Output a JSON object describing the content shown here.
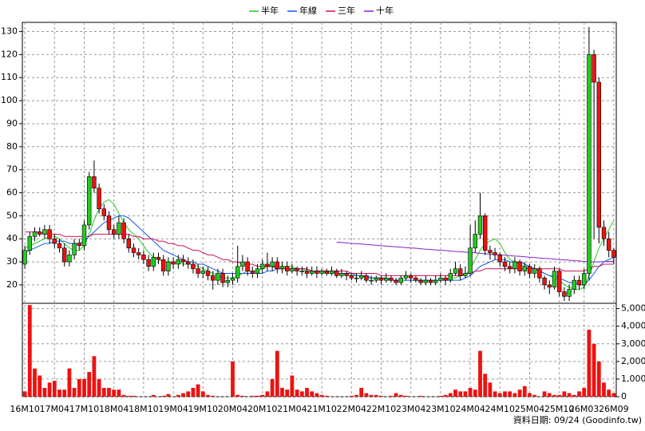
{
  "chart_data": {
    "type": "candlestick",
    "categories": [
      "16M10",
      null,
      null,
      null,
      null,
      null,
      "17M04",
      null,
      null,
      null,
      null,
      null,
      "17M10",
      null,
      null,
      null,
      null,
      null,
      "18M04",
      null,
      null,
      null,
      null,
      null,
      "18M10",
      null,
      null,
      null,
      null,
      null,
      "19M04",
      null,
      null,
      null,
      null,
      null,
      "19M10",
      null,
      null,
      null,
      null,
      null,
      "20M04",
      null,
      null,
      null,
      null,
      null,
      "20M10",
      null,
      null,
      null,
      null,
      null,
      "21M04",
      null,
      null,
      null,
      null,
      null,
      "21M10",
      null,
      null,
      null,
      null,
      null,
      "22M04",
      null,
      null,
      null,
      null,
      null,
      "22M10",
      null,
      null,
      null,
      null,
      null,
      "23M04",
      null,
      null,
      null,
      null,
      null,
      "23M10",
      null,
      null,
      null,
      null,
      null,
      "24M04",
      null,
      null,
      null,
      null,
      null,
      "24M10",
      null,
      null,
      null,
      null,
      null,
      "25M04",
      null,
      null,
      null,
      null,
      null,
      "25M10",
      null,
      null,
      null,
      null,
      "26M03",
      null,
      null,
      null,
      null,
      null,
      "26M09"
    ],
    "open": [
      29,
      35,
      41,
      43,
      42,
      44,
      40,
      38,
      36,
      30,
      33,
      38,
      37,
      46,
      67,
      62,
      53,
      50,
      44,
      42,
      47,
      40,
      36,
      34,
      33,
      31,
      28,
      32,
      31,
      26,
      30,
      29,
      31,
      30,
      29,
      27,
      25,
      26,
      24,
      22,
      25,
      21,
      22,
      23,
      28,
      30,
      26,
      25,
      27,
      29,
      28,
      30,
      27,
      28,
      26,
      27,
      26,
      26,
      25,
      26,
      25,
      26,
      25,
      26,
      24,
      25,
      24,
      23,
      23,
      24,
      22,
      22,
      23,
      22,
      23,
      22,
      21,
      23,
      24,
      23,
      22,
      21,
      22,
      21,
      22,
      23,
      22,
      25,
      27,
      24,
      25,
      36,
      42,
      50,
      35,
      34,
      33,
      30,
      28,
      27,
      30,
      26,
      28,
      25,
      27,
      23,
      20,
      19,
      26,
      17,
      15,
      18,
      22,
      20,
      25,
      120,
      108,
      45,
      40,
      35
    ],
    "high": [
      37,
      43,
      45,
      45,
      46,
      46,
      42,
      40,
      38,
      35,
      40,
      40,
      48,
      69,
      74,
      64,
      55,
      52,
      46,
      50,
      49,
      42,
      38,
      36,
      35,
      33,
      34,
      34,
      33,
      32,
      32,
      33,
      33,
      32,
      31,
      29,
      28,
      28,
      26,
      27,
      27,
      24,
      25,
      37,
      33,
      32,
      28,
      29,
      31,
      34,
      32,
      32,
      30,
      30,
      29,
      28,
      28,
      28,
      28,
      28,
      27,
      27,
      28,
      27,
      27,
      26,
      25,
      25,
      26,
      25,
      24,
      24,
      24,
      25,
      24,
      23,
      24,
      26,
      25,
      24,
      23,
      24,
      23,
      24,
      25,
      24,
      27,
      30,
      29,
      28,
      46,
      48,
      60,
      51,
      37,
      36,
      34,
      32,
      30,
      32,
      31,
      30,
      29,
      29,
      28,
      24,
      22,
      28,
      27,
      19,
      20,
      24,
      24,
      27,
      132,
      122,
      110,
      48,
      43,
      36
    ],
    "low": [
      27,
      33,
      39,
      41,
      40,
      38,
      36,
      34,
      28,
      28,
      31,
      35,
      35,
      44,
      60,
      51,
      48,
      42,
      40,
      40,
      38,
      34,
      32,
      31,
      29,
      26,
      26,
      29,
      24,
      24,
      27,
      27,
      28,
      27,
      25,
      23,
      23,
      22,
      18,
      20,
      19,
      19,
      20,
      21,
      26,
      24,
      23,
      23,
      25,
      26,
      26,
      25,
      25,
      24,
      25,
      24,
      24,
      23,
      24,
      23,
      24,
      24,
      24,
      23,
      23,
      22,
      22,
      21,
      22,
      21,
      20,
      21,
      20,
      21,
      21,
      20,
      20,
      22,
      21,
      21,
      20,
      20,
      20,
      20,
      21,
      20,
      21,
      24,
      22,
      23,
      24,
      34,
      40,
      33,
      31,
      31,
      28,
      26,
      25,
      25,
      24,
      24,
      23,
      23,
      21,
      18,
      16,
      18,
      15,
      13,
      13,
      16,
      18,
      18,
      22,
      40,
      38,
      37,
      32,
      29
    ],
    "close": [
      35,
      41,
      43,
      42,
      44,
      40,
      38,
      36,
      30,
      33,
      38,
      37,
      46,
      67,
      62,
      53,
      50,
      44,
      42,
      47,
      40,
      36,
      34,
      33,
      31,
      28,
      32,
      31,
      26,
      30,
      29,
      31,
      30,
      29,
      27,
      25,
      26,
      24,
      22,
      25,
      21,
      22,
      23,
      28,
      30,
      26,
      25,
      27,
      29,
      28,
      30,
      27,
      28,
      26,
      27,
      26,
      26,
      25,
      26,
      25,
      26,
      25,
      26,
      24,
      25,
      24,
      23,
      23,
      24,
      22,
      22,
      23,
      22,
      23,
      22,
      21,
      23,
      24,
      23,
      22,
      21,
      22,
      21,
      22,
      23,
      22,
      25,
      27,
      24,
      25,
      36,
      42,
      50,
      35,
      34,
      33,
      30,
      28,
      27,
      30,
      26,
      28,
      25,
      27,
      23,
      20,
      19,
      26,
      17,
      15,
      18,
      22,
      20,
      25,
      120,
      108,
      45,
      40,
      35,
      32
    ],
    "up_color": "#22cc22",
    "down_color": "#ee1111",
    "ylim": [
      12,
      134
    ],
    "yticks": [
      20,
      30,
      40,
      50,
      60,
      70,
      80,
      90,
      100,
      110,
      120,
      130
    ],
    "grid": true,
    "series": [
      {
        "name": "半年",
        "color": "#22cc22",
        "values": [
          36,
          37,
          38,
          39,
          40,
          41,
          41,
          40,
          38,
          36,
          35,
          35,
          37,
          42,
          48,
          53,
          56,
          57,
          55,
          51,
          47,
          44,
          42,
          40,
          37,
          34,
          32,
          31,
          30,
          30,
          30,
          30,
          29,
          29,
          29,
          28,
          27,
          26,
          25,
          24,
          23,
          23,
          23,
          24,
          25,
          26,
          26,
          26,
          27,
          28,
          28,
          28,
          28,
          28,
          28,
          27,
          27,
          26,
          26,
          26,
          26,
          25,
          25,
          25,
          25,
          25,
          24,
          24,
          24,
          23,
          23,
          23,
          23,
          22,
          22,
          22,
          22,
          22,
          22,
          22,
          22,
          22,
          22,
          22,
          22,
          22,
          23,
          23,
          24,
          24,
          27,
          31,
          35,
          38,
          39,
          40,
          38,
          34,
          31,
          30,
          29,
          28,
          27,
          27,
          26,
          25,
          24,
          23,
          22,
          20,
          19,
          18,
          18,
          19,
          24,
          30,
          36,
          40,
          44,
          48
        ]
      },
      {
        "name": "年線",
        "color": "#1155ee",
        "values": [
          34,
          35,
          36,
          37,
          38,
          38,
          39,
          39,
          39,
          38,
          38,
          38,
          39,
          41,
          43,
          45,
          47,
          48,
          49,
          50,
          50,
          49,
          47,
          45,
          43,
          41,
          39,
          37,
          35,
          34,
          33,
          32,
          31,
          30,
          30,
          29,
          29,
          28,
          27,
          26,
          25,
          25,
          25,
          25,
          25,
          25,
          25,
          25,
          25,
          26,
          26,
          27,
          27,
          27,
          27,
          27,
          27,
          27,
          26,
          26,
          26,
          26,
          26,
          25,
          25,
          25,
          25,
          24,
          24,
          24,
          23,
          23,
          23,
          23,
          22,
          22,
          22,
          22,
          22,
          22,
          22,
          22,
          22,
          22,
          22,
          22,
          22,
          22,
          22,
          23,
          24,
          26,
          28,
          29,
          30,
          31,
          31,
          31,
          30,
          30,
          30,
          29,
          28,
          27,
          26,
          25,
          24,
          24,
          23,
          22,
          21,
          21,
          20,
          20,
          22,
          25,
          28,
          30,
          31,
          32
        ]
      },
      {
        "name": "三年",
        "color": "#cc1155",
        "values": [
          43,
          43,
          43,
          43,
          42,
          42,
          42,
          42,
          41,
          41,
          41,
          41,
          41,
          41,
          42,
          42,
          42,
          42,
          42,
          42,
          42,
          42,
          41,
          41,
          40,
          40,
          40,
          39,
          39,
          38,
          38,
          37,
          37,
          36,
          35,
          35,
          34,
          33,
          33,
          32,
          31,
          31,
          30,
          30,
          29,
          29,
          29,
          28,
          28,
          28,
          28,
          27,
          27,
          27,
          27,
          27,
          27,
          27,
          26,
          26,
          26,
          26,
          26,
          26,
          26,
          26,
          25,
          25,
          25,
          25,
          25,
          25,
          24,
          24,
          24,
          24,
          24,
          24,
          24,
          24,
          24,
          24,
          24,
          24,
          24,
          24,
          24,
          24,
          24,
          25,
          25,
          26,
          26,
          27,
          27,
          27,
          27,
          27,
          27,
          27,
          27,
          27,
          27,
          27,
          27,
          27,
          27,
          27,
          27,
          26,
          26,
          26,
          26,
          26,
          27,
          28,
          28,
          29,
          29,
          29
        ]
      },
      {
        "name": "十年",
        "color": "#8822cc",
        "values": [
          null,
          null,
          null,
          null,
          null,
          null,
          null,
          null,
          null,
          null,
          null,
          null,
          null,
          null,
          null,
          null,
          null,
          null,
          null,
          null,
          null,
          null,
          null,
          null,
          null,
          null,
          null,
          null,
          null,
          null,
          null,
          null,
          null,
          null,
          null,
          null,
          null,
          null,
          null,
          null,
          null,
          null,
          null,
          null,
          null,
          null,
          null,
          null,
          null,
          null,
          null,
          null,
          null,
          null,
          null,
          null,
          null,
          null,
          null,
          null,
          null,
          null,
          null,
          38.5,
          38.4,
          38.2,
          38,
          37.9,
          37.7,
          37.5,
          37.4,
          37.2,
          37,
          36.9,
          36.7,
          36.5,
          36.4,
          36.2,
          36,
          35.9,
          35.7,
          35.5,
          35.4,
          35.2,
          35,
          34.9,
          34.7,
          34.5,
          34.4,
          34.2,
          34,
          33.9,
          33.7,
          33.5,
          33.4,
          33.2,
          33,
          32.9,
          32.7,
          32.5,
          32.4,
          32.2,
          32,
          31.9,
          31.7,
          31.5,
          31.4,
          31.2,
          31,
          30.9,
          30.7,
          30.5,
          30.4,
          30.2,
          30,
          30,
          30,
          30.1,
          30.2,
          30.3
        ]
      }
    ],
    "volume": {
      "color": "#ee1111",
      "values": [
        300,
        5200,
        1600,
        1200,
        500,
        800,
        900,
        400,
        400,
        1600,
        500,
        1000,
        1000,
        1400,
        2300,
        1000,
        500,
        500,
        400,
        400,
        100,
        50,
        50,
        0,
        0,
        0,
        100,
        0,
        50,
        150,
        0,
        100,
        200,
        300,
        500,
        700,
        300,
        100,
        50,
        0,
        0,
        0,
        2000,
        100,
        50,
        0,
        50,
        50,
        100,
        300,
        1000,
        2600,
        500,
        400,
        1200,
        400,
        300,
        500,
        300,
        200,
        100,
        50,
        0,
        0,
        0,
        0,
        50,
        100,
        500,
        200,
        100,
        100,
        50,
        0,
        50,
        200,
        100,
        50,
        0,
        0,
        50,
        0,
        0,
        0,
        50,
        100,
        200,
        400,
        300,
        300,
        500,
        400,
        2600,
        1300,
        800,
        300,
        200,
        300,
        300,
        200,
        400,
        600,
        200,
        100,
        0,
        300,
        200,
        100,
        100,
        300,
        200,
        100,
        300,
        500,
        3800,
        3000,
        2000,
        800,
        400,
        200
      ],
      "ylim": [
        0,
        5300
      ],
      "yticks": [
        0,
        {
          "value": 1000,
          "label": "1,000"
        },
        {
          "value": 2000,
          "label": "2,000"
        },
        {
          "value": 3000,
          "label": "3,000"
        },
        {
          "value": 4000,
          "label": "4,000"
        },
        {
          "value": 5000,
          "label": "5,000"
        }
      ]
    },
    "note": "資料日期: 09/24 (Goodinfo.tw)"
  }
}
